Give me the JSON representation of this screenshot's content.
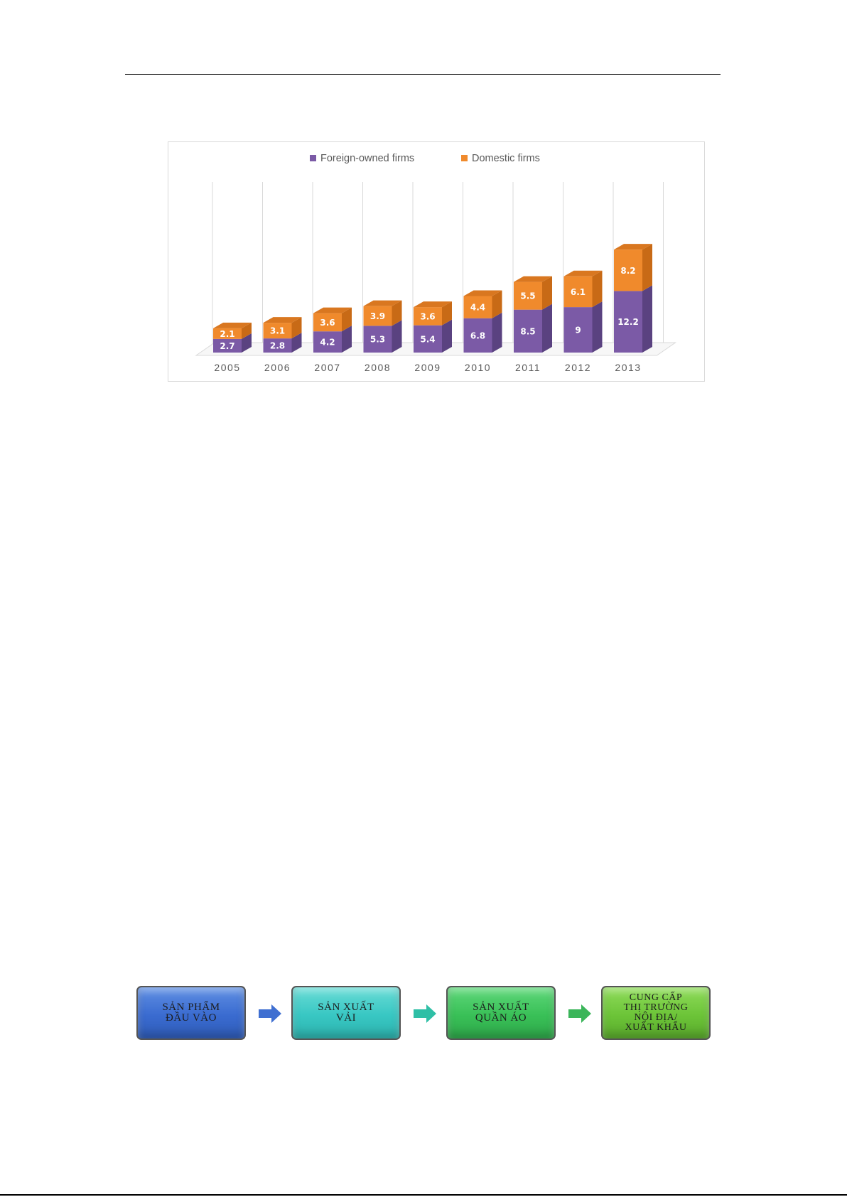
{
  "colors": {
    "foreign": "#7b5aa6",
    "foreign_side": "#5a4280",
    "foreign_top": "#6a4d92",
    "domestic": "#f08a2c",
    "domestic_side": "#c86a16",
    "domestic_top": "#d97720",
    "label_text": "#ffffff",
    "axis_text": "#595959",
    "grid": "#d9d9d9"
  },
  "chart_data": {
    "type": "bar",
    "stacked": true,
    "three_d": true,
    "categories": [
      "2005",
      "2006",
      "2007",
      "2008",
      "2009",
      "2010",
      "2011",
      "2012",
      "2013"
    ],
    "series": [
      {
        "name": "Foreign-owned firms",
        "values": [
          2.7,
          2.8,
          4.2,
          5.3,
          5.4,
          6.8,
          8.5,
          9,
          12.2
        ]
      },
      {
        "name": "Domestic firms",
        "values": [
          2.1,
          3.1,
          3.6,
          3.9,
          3.6,
          4.4,
          5.5,
          6.1,
          8.2
        ]
      }
    ],
    "data_labels": [
      [
        "2.7",
        "2.8",
        "4.2",
        "5.3",
        "5.4",
        "6.8",
        "8.5",
        "9",
        "12.2"
      ],
      [
        "2.1",
        "3.1",
        "3.6",
        "3.9",
        "3.6",
        "4.4",
        "5.5",
        "6.1",
        "8.2"
      ]
    ],
    "legend_position": "top-center",
    "grid": "vertical",
    "ylim": [
      0,
      27
    ]
  },
  "flow": {
    "steps": [
      {
        "label": "SẢN PHẨM\nĐẦU VÀO",
        "icon": "arrow-right-icon"
      },
      {
        "label": "SẢN XUẤT\nVẢI",
        "icon": "arrow-right-icon"
      },
      {
        "label": "SẢN XUẤT\nQUẦN ÁO",
        "icon": "arrow-right-icon"
      },
      {
        "label": "CUNG CẤP\nTHỊ TRƯỜNG\nNỘI ĐỊA/\nXUẤT KHẨU"
      }
    ],
    "arrow_colors": [
      "#3f6fd1",
      "#2fbfa6",
      "#3bb55a"
    ]
  }
}
